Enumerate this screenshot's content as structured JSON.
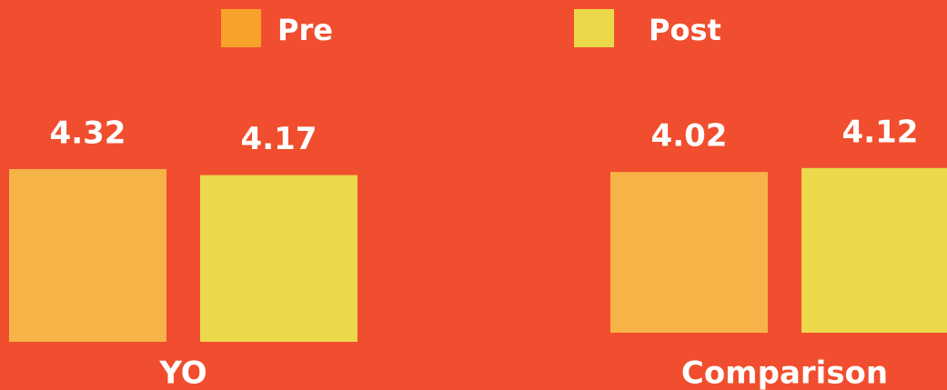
{
  "chart_data": {
    "type": "bar",
    "categories": [
      "YO",
      "Comparison"
    ],
    "series": [
      {
        "name": "Pre",
        "color": "#f6b347",
        "legend_color": "#f9a22b",
        "values": [
          4.32,
          4.02
        ]
      },
      {
        "name": "Post",
        "color": "#ecd94b",
        "legend_color": "#ecd94b",
        "values": [
          4.17,
          4.12
        ]
      }
    ],
    "legend": "top"
  }
}
